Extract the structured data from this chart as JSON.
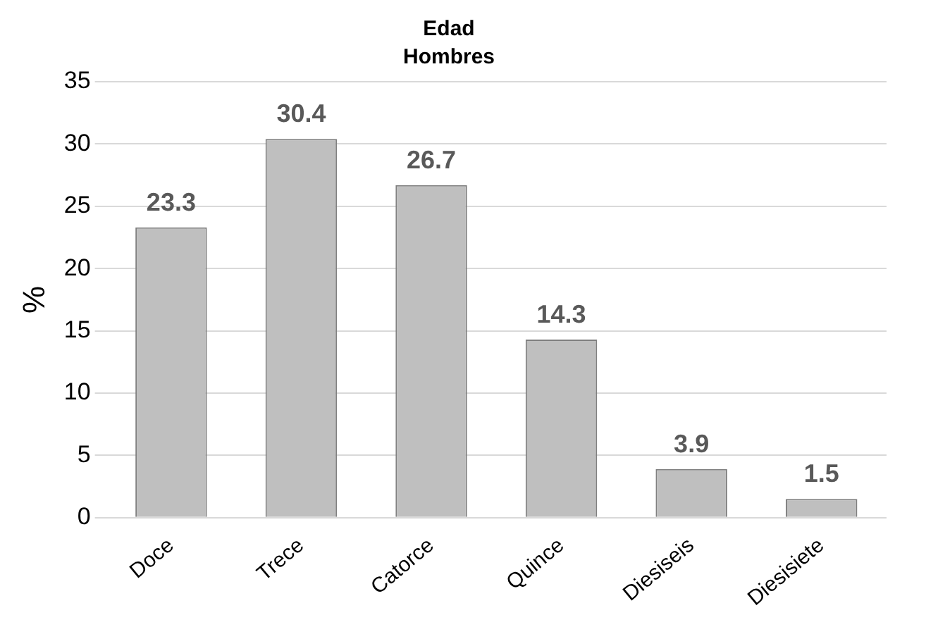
{
  "chart_data": {
    "type": "bar",
    "title": "Edad",
    "subtitle": "Hombres",
    "ylabel": "%",
    "categories": [
      "Doce",
      "Trece",
      "Catorce",
      "Quince",
      "Diesiseis",
      "Diesisiete"
    ],
    "values": [
      23.3,
      30.4,
      26.7,
      14.3,
      3.9,
      1.5
    ],
    "color": "#bfbfbf",
    "ylim": [
      0,
      35
    ],
    "yticks": [
      0,
      5,
      10,
      15,
      20,
      25,
      30,
      35
    ],
    "grid": "y",
    "data_labels": true
  }
}
